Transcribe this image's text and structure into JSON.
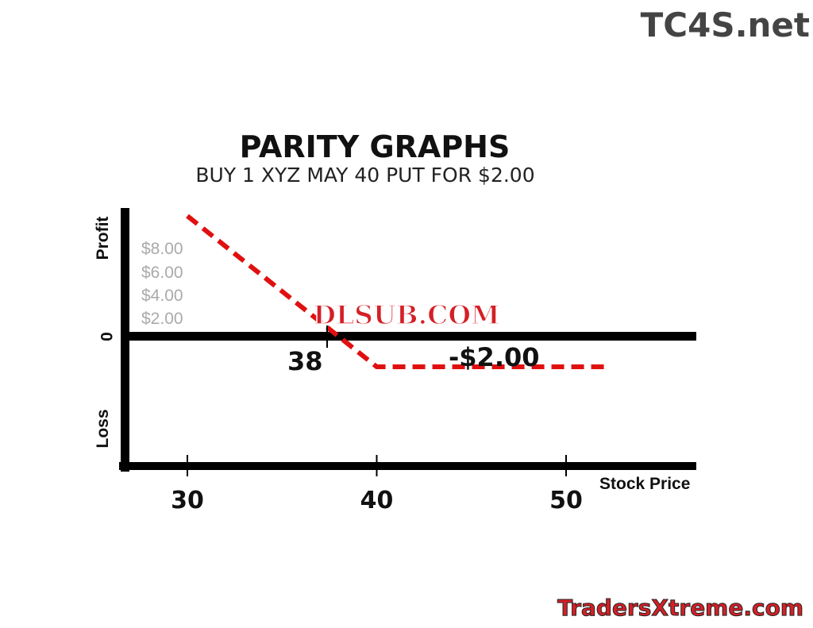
{
  "watermarks": {
    "top_right": "TC4S.net",
    "center": "DLSUB.COM",
    "bottom_right": "TradersXtreme.com"
  },
  "chart_data": {
    "type": "line",
    "title": "PARITY GRAPHS",
    "subtitle": "BUY 1 XYZ MAY 40 PUT  FOR  $2.00",
    "xlabel": "Stock Price",
    "ylabel_top": "Profit",
    "ylabel_zero": "0",
    "ylabel_bottom": "Loss",
    "x_ticks": [
      30,
      40,
      50
    ],
    "y_tick_labels": [
      "$8.00",
      "$6.00",
      "$4.00",
      "$2.00"
    ],
    "series": [
      {
        "x": [
          30,
          40,
          52
        ],
        "y": [
          8,
          -2,
          -2
        ],
        "color": "#e01010",
        "style": "dashed"
      }
    ],
    "annotations": [
      {
        "text": "38",
        "x": 38,
        "y": 0
      },
      {
        "text": "-$2.00",
        "x": 45,
        "y": -2
      }
    ],
    "xlim": [
      26.5,
      56
    ],
    "grid": false
  }
}
